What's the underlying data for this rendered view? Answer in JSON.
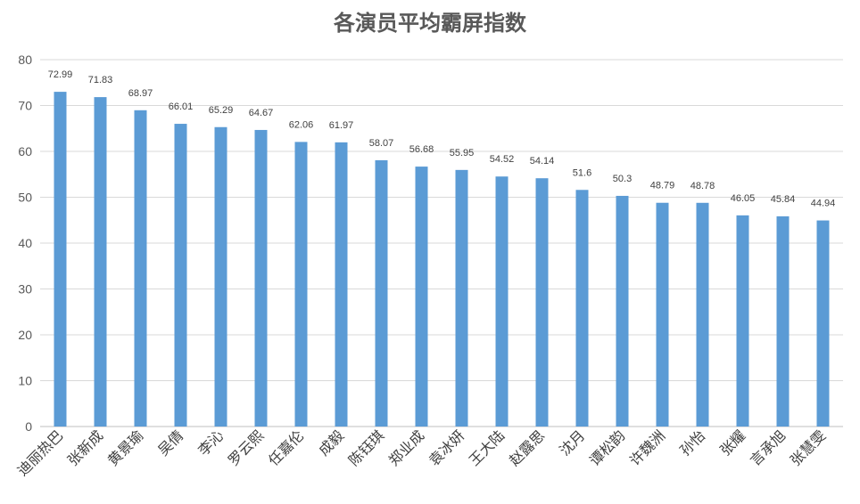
{
  "chart_data": {
    "type": "bar",
    "title": "各演员平均霸屏指数",
    "xlabel": "",
    "ylabel": "",
    "ylim": [
      0,
      80
    ],
    "yticks": [
      0,
      10,
      20,
      30,
      40,
      50,
      60,
      70,
      80
    ],
    "grid": true,
    "bar_color": "#5B9BD5",
    "categories": [
      "迪丽热巴",
      "张新成",
      "黄景瑜",
      "吴倩",
      "李沁",
      "罗云熙",
      "任嘉伦",
      "成毅",
      "陈钰琪",
      "郑业成",
      "袁冰妍",
      "王大陆",
      "赵露思",
      "沈月",
      "谭松韵",
      "许魏洲",
      "孙怡",
      "张耀",
      "言承旭",
      "张慧雯"
    ],
    "values": [
      72.99,
      71.83,
      68.97,
      66.01,
      65.29,
      64.67,
      62.06,
      61.97,
      58.07,
      56.68,
      55.95,
      54.52,
      54.14,
      51.6,
      50.3,
      48.79,
      48.78,
      46.05,
      45.84,
      44.94
    ],
    "value_labels": [
      "72.99",
      "71.83",
      "68.97",
      "66.01",
      "65.29",
      "64.67",
      "62.06",
      "61.97",
      "58.07",
      "56.68",
      "55.95",
      "54.52",
      "54.14",
      "51.6",
      "50.3",
      "48.79",
      "48.78",
      "46.05",
      "45.84",
      "44.94"
    ]
  }
}
